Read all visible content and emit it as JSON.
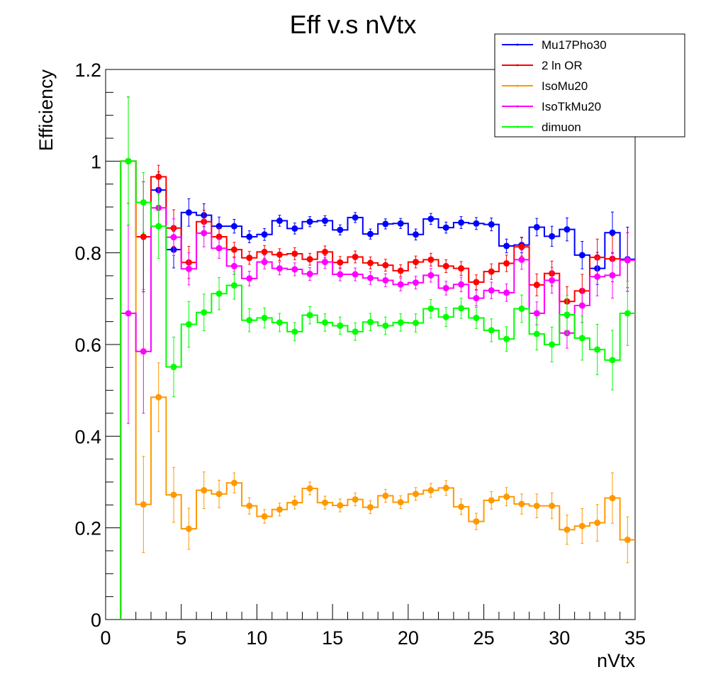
{
  "chart_data": {
    "type": "line",
    "title": "Eff v.s nVtx",
    "xlabel": "nVtx",
    "ylabel": "Efficiency",
    "xlim": [
      0,
      35
    ],
    "ylim": [
      0,
      1.2
    ],
    "xticks": [
      0,
      5,
      10,
      15,
      20,
      25,
      30,
      35
    ],
    "yticks": [
      0,
      0.2,
      0.4,
      0.6,
      0.8,
      1,
      1.2
    ],
    "xtick_labels": [
      "0",
      "5",
      "10",
      "15",
      "20",
      "25",
      "30",
      "35"
    ],
    "ytick_labels": [
      "0",
      "0.2",
      "0.4",
      "0.6",
      "0.8",
      "1",
      "1.2"
    ],
    "legend_position": "top-right",
    "x": [
      1.5,
      2.5,
      3.5,
      4.5,
      5.5,
      6.5,
      7.5,
      8.5,
      9.5,
      10.5,
      11.5,
      12.5,
      13.5,
      14.5,
      15.5,
      16.5,
      17.5,
      18.5,
      19.5,
      20.5,
      21.5,
      22.5,
      23.5,
      24.5,
      25.5,
      26.5,
      27.5,
      28.5,
      29.5,
      30.5,
      31.5,
      32.5,
      33.5,
      34.5
    ],
    "series": [
      {
        "name": "Mu17Pho30",
        "color": "#0000ff",
        "values": [
          1.0,
          0.835,
          0.937,
          0.807,
          0.888,
          0.882,
          0.858,
          0.858,
          0.835,
          0.84,
          0.87,
          0.853,
          0.868,
          0.87,
          0.85,
          0.877,
          0.841,
          0.863,
          0.864,
          0.84,
          0.874,
          0.855,
          0.866,
          0.864,
          0.862,
          0.815,
          0.817,
          0.856,
          0.836,
          0.851,
          0.795,
          0.766,
          0.844,
          0.786
        ],
        "errors": [
          0.14,
          0.12,
          0.04,
          0.04,
          0.03,
          0.025,
          0.02,
          0.015,
          0.013,
          0.013,
          0.012,
          0.012,
          0.011,
          0.011,
          0.011,
          0.011,
          0.011,
          0.011,
          0.011,
          0.012,
          0.012,
          0.012,
          0.013,
          0.013,
          0.014,
          0.015,
          0.017,
          0.019,
          0.022,
          0.025,
          0.03,
          0.035,
          0.045,
          0.07
        ]
      },
      {
        "name": "2 ln OR",
        "color": "#ff0000",
        "values": [
          1.0,
          0.835,
          0.966,
          0.854,
          0.779,
          0.868,
          0.835,
          0.807,
          0.789,
          0.802,
          0.796,
          0.798,
          0.786,
          0.802,
          0.779,
          0.791,
          0.778,
          0.773,
          0.761,
          0.78,
          0.785,
          0.771,
          0.766,
          0.736,
          0.759,
          0.777,
          0.813,
          0.73,
          0.755,
          0.694,
          0.717,
          0.79,
          0.787,
          0.784
        ],
        "errors": [
          0.14,
          0.12,
          0.025,
          0.04,
          0.035,
          0.025,
          0.02,
          0.016,
          0.014,
          0.014,
          0.013,
          0.013,
          0.013,
          0.013,
          0.013,
          0.013,
          0.013,
          0.013,
          0.013,
          0.013,
          0.014,
          0.014,
          0.015,
          0.016,
          0.017,
          0.018,
          0.02,
          0.024,
          0.027,
          0.032,
          0.036,
          0.04,
          0.05,
          0.06
        ]
      },
      {
        "name": "IsoMu20",
        "color": "#ff9900",
        "values": [
          1.0,
          0.251,
          0.485,
          0.272,
          0.198,
          0.282,
          0.274,
          0.298,
          0.248,
          0.225,
          0.24,
          0.255,
          0.286,
          0.255,
          0.249,
          0.262,
          0.245,
          0.27,
          0.256,
          0.274,
          0.282,
          0.287,
          0.246,
          0.214,
          0.26,
          0.268,
          0.252,
          0.248,
          0.248,
          0.196,
          0.204,
          0.211,
          0.265,
          0.174
        ],
        "errors": [
          0.14,
          0.105,
          0.075,
          0.06,
          0.045,
          0.04,
          0.03,
          0.022,
          0.018,
          0.015,
          0.014,
          0.014,
          0.014,
          0.014,
          0.014,
          0.014,
          0.014,
          0.014,
          0.014,
          0.014,
          0.015,
          0.016,
          0.017,
          0.018,
          0.019,
          0.02,
          0.022,
          0.026,
          0.028,
          0.032,
          0.038,
          0.04,
          0.055,
          0.05
        ]
      },
      {
        "name": "IsoTkMu20",
        "color": "#ff00ff",
        "values": [
          0.668,
          0.585,
          0.898,
          0.834,
          0.765,
          0.843,
          0.81,
          0.771,
          0.744,
          0.78,
          0.766,
          0.764,
          0.754,
          0.78,
          0.753,
          0.753,
          0.745,
          0.74,
          0.731,
          0.735,
          0.751,
          0.723,
          0.731,
          0.701,
          0.718,
          0.713,
          0.785,
          0.668,
          0.74,
          0.625,
          0.685,
          0.748,
          0.751,
          0.784
        ],
        "errors": [
          0.24,
          0.135,
          0.04,
          0.04,
          0.035,
          0.03,
          0.022,
          0.018,
          0.016,
          0.015,
          0.014,
          0.014,
          0.014,
          0.014,
          0.014,
          0.014,
          0.014,
          0.014,
          0.014,
          0.014,
          0.015,
          0.015,
          0.016,
          0.017,
          0.018,
          0.019,
          0.021,
          0.025,
          0.028,
          0.033,
          0.037,
          0.042,
          0.05,
          0.06
        ]
      },
      {
        "name": "dimuon",
        "color": "#00ff00",
        "values": [
          1.0,
          0.91,
          0.858,
          0.551,
          0.644,
          0.67,
          0.711,
          0.729,
          0.653,
          0.658,
          0.648,
          0.628,
          0.664,
          0.648,
          0.641,
          0.628,
          0.649,
          0.641,
          0.648,
          0.647,
          0.678,
          0.66,
          0.679,
          0.658,
          0.631,
          0.612,
          0.678,
          0.623,
          0.6,
          0.665,
          0.614,
          0.589,
          0.566,
          0.668
        ],
        "errors": [
          0.14,
          0.065,
          0.07,
          0.065,
          0.05,
          0.04,
          0.035,
          0.03,
          0.025,
          0.022,
          0.02,
          0.02,
          0.019,
          0.019,
          0.019,
          0.019,
          0.019,
          0.019,
          0.019,
          0.02,
          0.02,
          0.021,
          0.022,
          0.023,
          0.025,
          0.027,
          0.03,
          0.035,
          0.038,
          0.042,
          0.048,
          0.055,
          0.065,
          0.07
        ]
      }
    ]
  }
}
